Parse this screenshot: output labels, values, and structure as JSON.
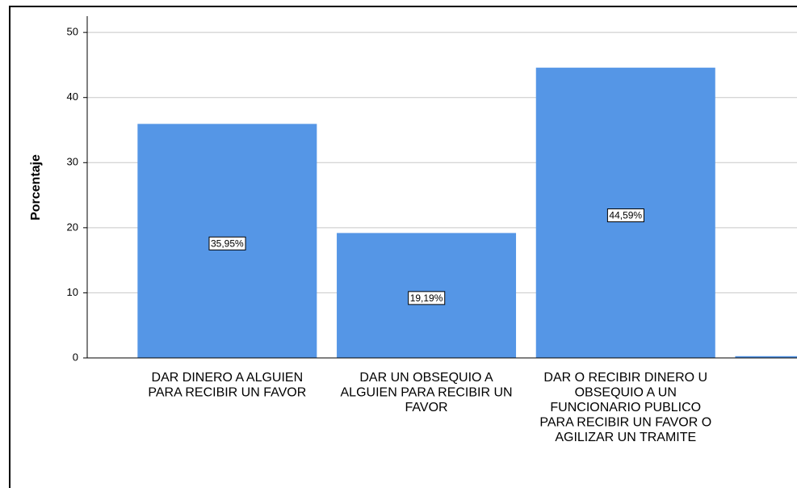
{
  "chart_data": {
    "type": "bar",
    "y_label": "Porcentaje",
    "categories": [
      "DAR DINERO A ALGUIEN PARA RECIBIR UN FAVOR",
      "DAR UN OBSEQUIO A ALGUIEN PARA RECIBIR UN FAVOR",
      "DAR O RECIBIR DINERO U OBSEQUIO A UN FUNCIONARIO PUBLICO PARA RECIBIR UN FAVOR O AGILIZAR UN TRAMITE",
      null
    ],
    "values": [
      35.95,
      19.19,
      44.59,
      0.27
    ],
    "value_labels": [
      "35,95%",
      "19,19%",
      "44,59%",
      null
    ],
    "color": "#5596e6",
    "ylim": [
      0,
      52.5
    ],
    "yticks": [
      0,
      10,
      20,
      30,
      40,
      50
    ],
    "grid": true
  }
}
